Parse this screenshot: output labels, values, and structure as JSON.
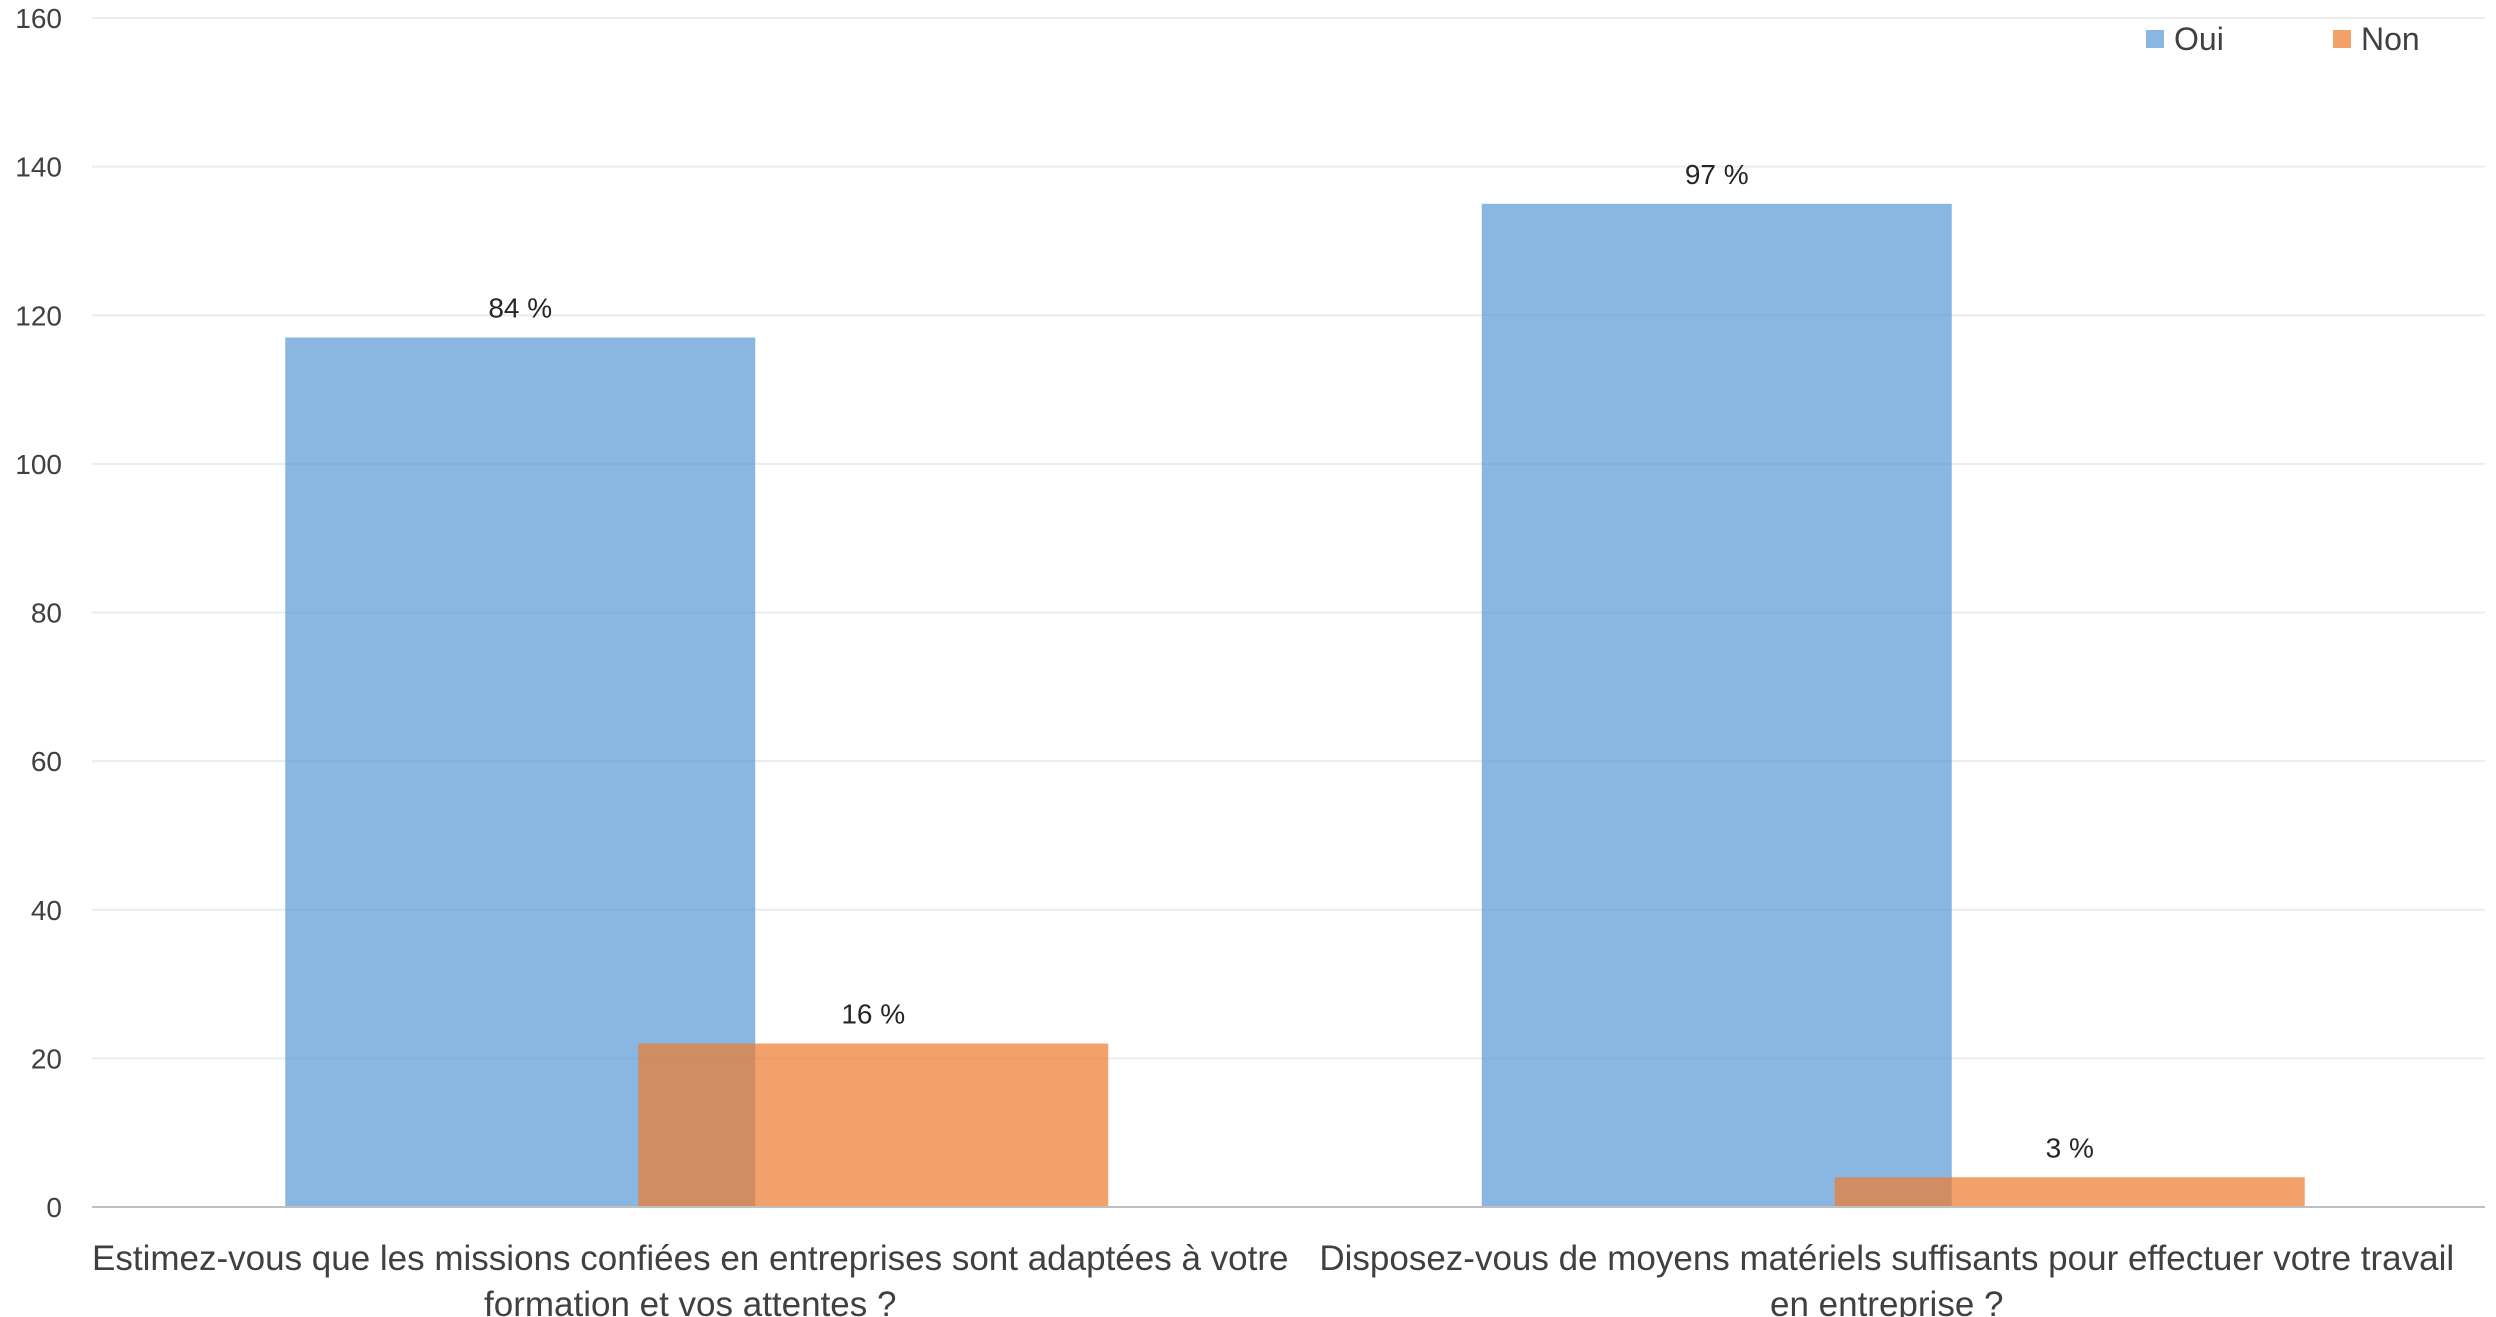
{
  "chart_data": {
    "type": "bar",
    "categories": [
      [
        "Estimez-vous que les missions confiées en entreprises sont adaptées à votre",
        "formation et vos attentes ?"
      ],
      [
        "Disposez-vous de moyens matériels suffisants pour effectuer votre travail",
        "en entreprise ?"
      ]
    ],
    "series": [
      {
        "name": "Oui",
        "values": [
          117,
          135
        ],
        "labels": [
          "84 %",
          "97 %"
        ],
        "color": "#5b9bd5"
      },
      {
        "name": "Non",
        "values": [
          22,
          4
        ],
        "labels": [
          "16 %",
          "3 %"
        ],
        "color": "#ed7d31"
      }
    ],
    "ylim": [
      0,
      160
    ],
    "yticks": [
      0,
      20,
      40,
      60,
      80,
      100,
      120,
      140,
      160
    ],
    "grid": true,
    "legend_position": "top-right",
    "title": "",
    "xlabel": "",
    "ylabel": ""
  }
}
